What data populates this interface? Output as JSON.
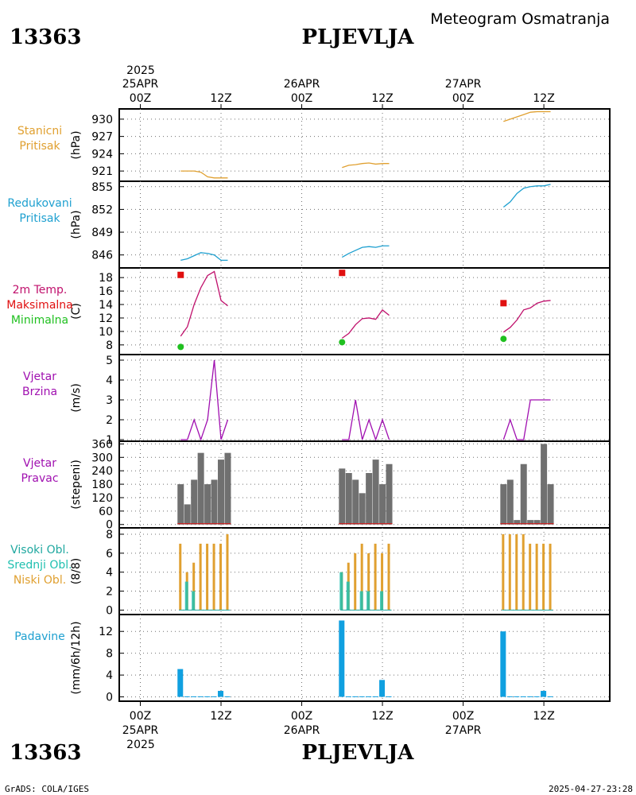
{
  "header": {
    "station_id": "13363",
    "station_name": "PLJEVLJA",
    "title": "Meteogram Osmatranja"
  },
  "footer": {
    "credit": "GrADS: COLA/IGES",
    "timestamp": "2025-04-27-23:28"
  },
  "time_axis": {
    "top_year": "2025",
    "bottom_year": "2025",
    "ticks": [
      {
        "t": 0,
        "hour": "00Z",
        "date": "25APR"
      },
      {
        "t": 12,
        "hour": "12Z",
        "date": ""
      },
      {
        "t": 24,
        "hour": "00Z",
        "date": "26APR"
      },
      {
        "t": 36,
        "hour": "12Z",
        "date": ""
      },
      {
        "t": 48,
        "hour": "00Z",
        "date": "27APR"
      },
      {
        "t": 60,
        "hour": "12Z",
        "date": ""
      }
    ]
  },
  "colors": {
    "pressure": "#e0a030",
    "reduced": "#1ea0d0",
    "temp": "#c0106c",
    "tmax": "#e01010",
    "tmin": "#20c020",
    "wind": "#a010b0",
    "winddir": "#707070",
    "cloud_high": "#20a8a0",
    "cloud_mid": "#20c0b0",
    "cloud_low": "#e0a030",
    "precip": "#10a0e0",
    "grid": "#707070"
  },
  "chart_data": [
    {
      "type": "line",
      "id": "pressure",
      "label_lines": [
        "Stanicni",
        "Pritisak"
      ],
      "label_color": "#e0a030",
      "ylabel": "(hPa)",
      "ylim": [
        919.5,
        931.5
      ],
      "yticks": [
        921,
        924,
        927,
        930
      ],
      "series": [
        {
          "x": [
            6,
            7,
            8,
            9,
            10,
            11,
            12,
            13
          ],
          "y": [
            921.0,
            921.0,
            921.0,
            920.8,
            920.0,
            919.8,
            919.8,
            919.8
          ]
        },
        {
          "x": [
            30,
            31,
            32,
            33,
            34,
            35,
            36,
            37
          ],
          "y": [
            921.6,
            922.0,
            922.1,
            922.3,
            922.4,
            922.2,
            922.3,
            922.3
          ]
        },
        {
          "x": [
            54,
            55,
            56,
            57,
            58,
            59,
            60,
            61
          ],
          "y": [
            929.6,
            930.0,
            930.4,
            930.8,
            931.2,
            931.3,
            931.3,
            931.3
          ]
        }
      ]
    },
    {
      "type": "line",
      "id": "reduced",
      "label_lines": [
        "Redukovani",
        "Pritisak"
      ],
      "label_color": "#1ea0d0",
      "ylabel": "(hPa)",
      "ylim": [
        844.5,
        855.5
      ],
      "yticks": [
        846,
        849,
        852,
        855
      ],
      "series": [
        {
          "x": [
            6,
            7,
            8,
            9,
            10,
            11,
            12,
            13
          ],
          "y": [
            845.3,
            845.5,
            845.9,
            846.3,
            846.2,
            846.0,
            845.3,
            845.3
          ]
        },
        {
          "x": [
            30,
            31,
            32,
            33,
            34,
            35,
            36,
            37
          ],
          "y": [
            845.7,
            846.2,
            846.6,
            847.0,
            847.1,
            847.0,
            847.2,
            847.2
          ]
        },
        {
          "x": [
            54,
            55,
            56,
            57,
            58,
            59,
            60,
            61
          ],
          "y": [
            852.3,
            853.0,
            854.1,
            854.8,
            855.0,
            855.1,
            855.1,
            855.3
          ]
        }
      ]
    },
    {
      "type": "line",
      "id": "temperature",
      "label_lines": [
        "2m Temp.",
        "Maksimalna",
        "Minimalna"
      ],
      "label_colors": [
        "#c0106c",
        "#e01010",
        "#20c020"
      ],
      "ylabel": "(C)",
      "ylim": [
        6.8,
        19.2
      ],
      "yticks": [
        8,
        10,
        12,
        14,
        16,
        18
      ],
      "series": [
        {
          "x": [
            6,
            7,
            8,
            9,
            10,
            11,
            12,
            13
          ],
          "y": [
            9.3,
            10.7,
            14.0,
            16.5,
            18.3,
            18.9,
            14.6,
            13.8
          ]
        },
        {
          "x": [
            30,
            31,
            32,
            33,
            34,
            35,
            36,
            37
          ],
          "y": [
            9.0,
            9.7,
            11.0,
            11.9,
            12.0,
            11.8,
            13.2,
            12.4
          ]
        },
        {
          "x": [
            54,
            55,
            56,
            57,
            58,
            59,
            60,
            61
          ],
          "y": [
            9.9,
            10.6,
            11.7,
            13.2,
            13.5,
            14.2,
            14.5,
            14.6
          ]
        }
      ],
      "max_points": [
        {
          "x": 6,
          "y": 18.4
        },
        {
          "x": 30,
          "y": 18.7
        },
        {
          "x": 54,
          "y": 14.2
        }
      ],
      "min_points": [
        {
          "x": 6,
          "y": 7.7
        },
        {
          "x": 30,
          "y": 8.4
        },
        {
          "x": 54,
          "y": 8.9
        }
      ]
    },
    {
      "type": "line",
      "id": "wind_speed",
      "label_lines": [
        "Vjetar",
        "Brzina"
      ],
      "label_color": "#a010b0",
      "ylabel": "(m/s)",
      "ylim": [
        1,
        5.2
      ],
      "yticks": [
        1,
        2,
        3,
        4,
        5
      ],
      "series": [
        {
          "x": [
            6,
            7,
            8,
            9,
            10,
            11,
            12,
            13
          ],
          "y": [
            1,
            1,
            2,
            1,
            2,
            5,
            1,
            2
          ]
        },
        {
          "x": [
            30,
            31,
            32,
            33,
            34,
            35,
            36,
            37
          ],
          "y": [
            1,
            1,
            3,
            1,
            2,
            1,
            2,
            1
          ]
        },
        {
          "x": [
            54,
            55,
            56,
            57,
            58,
            59,
            60,
            61
          ],
          "y": [
            1,
            2,
            1,
            1,
            3,
            3,
            3,
            3
          ]
        }
      ]
    },
    {
      "type": "bar",
      "id": "wind_direction",
      "label_lines": [
        "Vjetar",
        "Pravac"
      ],
      "label_color": "#a010b0",
      "ylabel": "(stepeni)",
      "ylim": [
        -8,
        365
      ],
      "yticks": [
        0,
        60,
        120,
        180,
        240,
        300,
        360
      ],
      "x": [
        6,
        7,
        8,
        9,
        10,
        11,
        12,
        13,
        30,
        31,
        32,
        33,
        34,
        35,
        36,
        37,
        54,
        55,
        56,
        57,
        58,
        59,
        60,
        61
      ],
      "values": [
        180,
        90,
        200,
        320,
        180,
        200,
        290,
        320,
        250,
        230,
        200,
        140,
        230,
        290,
        180,
        270,
        180,
        200,
        20,
        270,
        20,
        20,
        360,
        180
      ]
    },
    {
      "type": "bar",
      "id": "clouds",
      "label_lines": [
        "Visoki Obl.",
        "Srednji Obl.",
        "Niski Obl."
      ],
      "label_colors": [
        "#20a8a0",
        "#20c0b0",
        "#e0a030"
      ],
      "ylabel": "(8/8)",
      "ylim": [
        -0.3,
        8.5
      ],
      "yticks": [
        0,
        2,
        4,
        6,
        8
      ],
      "x": [
        6,
        7,
        8,
        9,
        10,
        11,
        12,
        13,
        30,
        31,
        32,
        33,
        34,
        35,
        36,
        37,
        54,
        55,
        56,
        57,
        58,
        59,
        60,
        61
      ],
      "series": [
        {
          "name": "Niski Obl.",
          "values": [
            7,
            4,
            5,
            7,
            7,
            7,
            7,
            8,
            4,
            5,
            6,
            7,
            6,
            7,
            6,
            7,
            8,
            8,
            8,
            8,
            7,
            7,
            7,
            7
          ]
        },
        {
          "name": "Srednji Obl.",
          "values": [
            0,
            3,
            2,
            0,
            0,
            0,
            0,
            0,
            4,
            3,
            0,
            2,
            2,
            0,
            2,
            0,
            0,
            0,
            0,
            0,
            0,
            0,
            0,
            0
          ]
        }
      ]
    },
    {
      "type": "bar",
      "id": "precipitation",
      "label_lines": [
        "Padavine"
      ],
      "label_color": "#1ea0d0",
      "ylabel": "(mm/6h/12h)",
      "ylim": [
        -0.5,
        14.8
      ],
      "yticks": [
        0,
        4,
        8,
        12
      ],
      "x": [
        6,
        7,
        8,
        9,
        10,
        11,
        12,
        13,
        30,
        31,
        32,
        33,
        34,
        35,
        36,
        37,
        54,
        55,
        56,
        57,
        58,
        59,
        60,
        61
      ],
      "values": [
        5.1,
        0.1,
        0.1,
        0.1,
        0.1,
        0.1,
        1.1,
        0.1,
        14,
        0.1,
        0.1,
        0.1,
        0.1,
        0.1,
        3.1,
        0.1,
        12,
        0.1,
        0.1,
        0.1,
        0.1,
        0.1,
        1.1,
        0.1
      ]
    }
  ]
}
